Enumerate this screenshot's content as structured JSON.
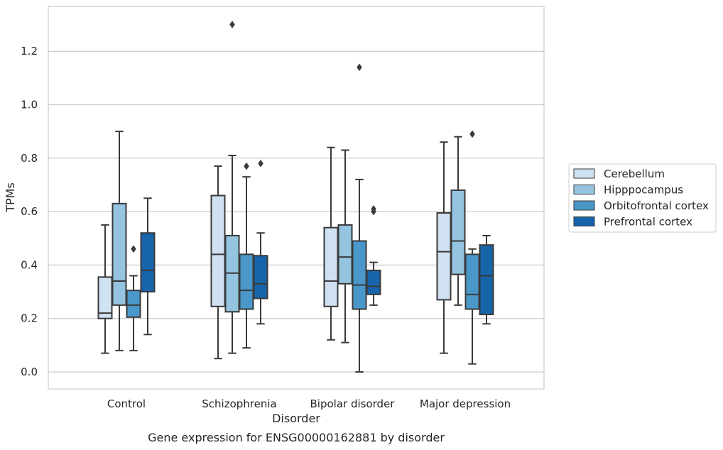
{
  "caption": "Gene expression for ENSG00000162881 by disorder",
  "chart_data": {
    "type": "box",
    "xlabel": "Disorder",
    "ylabel": "TPMs",
    "ylim": [
      -0.065,
      1.37
    ],
    "yticks": [
      "0.0",
      "0.2",
      "0.4",
      "0.6",
      "0.8",
      "1.0",
      "1.2"
    ],
    "grid": "horizontal",
    "legend_position": "right",
    "categories": [
      "Control",
      "Schizophrenia",
      "Bipolar disorder",
      "Major depression"
    ],
    "series": [
      {
        "name": "Cerebellum",
        "color": "#d0e1f2",
        "boxes": [
          {
            "whislo": 0.07,
            "q1": 0.2,
            "med": 0.22,
            "q3": 0.355,
            "whishi": 0.55,
            "fliers": []
          },
          {
            "whislo": 0.05,
            "q1": 0.245,
            "med": 0.44,
            "q3": 0.66,
            "whishi": 0.77,
            "fliers": []
          },
          {
            "whislo": 0.12,
            "q1": 0.245,
            "med": 0.34,
            "q3": 0.54,
            "whishi": 0.84,
            "fliers": []
          },
          {
            "whislo": 0.07,
            "q1": 0.27,
            "med": 0.45,
            "q3": 0.595,
            "whishi": 0.86,
            "fliers": []
          }
        ]
      },
      {
        "name": "Hipppocampus",
        "color": "#94c4df",
        "boxes": [
          {
            "whislo": 0.08,
            "q1": 0.25,
            "med": 0.34,
            "q3": 0.63,
            "whishi": 0.9,
            "fliers": []
          },
          {
            "whislo": 0.07,
            "q1": 0.225,
            "med": 0.37,
            "q3": 0.51,
            "whishi": 0.81,
            "fliers": [
              1.3
            ]
          },
          {
            "whislo": 0.11,
            "q1": 0.33,
            "med": 0.43,
            "q3": 0.55,
            "whishi": 0.83,
            "fliers": []
          },
          {
            "whislo": 0.25,
            "q1": 0.365,
            "med": 0.49,
            "q3": 0.68,
            "whishi": 0.88,
            "fliers": []
          }
        ]
      },
      {
        "name": "Orbitofrontal cortex",
        "color": "#4a98c9",
        "boxes": [
          {
            "whislo": 0.08,
            "q1": 0.205,
            "med": 0.25,
            "q3": 0.305,
            "whishi": 0.36,
            "fliers": [
              0.46
            ]
          },
          {
            "whislo": 0.09,
            "q1": 0.235,
            "med": 0.305,
            "q3": 0.44,
            "whishi": 0.73,
            "fliers": [
              0.77
            ]
          },
          {
            "whislo": 0.0,
            "q1": 0.235,
            "med": 0.325,
            "q3": 0.49,
            "whishi": 0.72,
            "fliers": [
              1.14
            ]
          },
          {
            "whislo": 0.03,
            "q1": 0.235,
            "med": 0.29,
            "q3": 0.44,
            "whishi": 0.46,
            "fliers": [
              0.89
            ]
          }
        ]
      },
      {
        "name": "Prefrontal cortex",
        "color": "#1764ab",
        "boxes": [
          {
            "whislo": 0.14,
            "q1": 0.3,
            "med": 0.38,
            "q3": 0.52,
            "whishi": 0.65,
            "fliers": []
          },
          {
            "whislo": 0.18,
            "q1": 0.275,
            "med": 0.33,
            "q3": 0.435,
            "whishi": 0.52,
            "fliers": [
              0.78
            ]
          },
          {
            "whislo": 0.25,
            "q1": 0.29,
            "med": 0.32,
            "q3": 0.38,
            "whishi": 0.41,
            "fliers": [
              0.6,
              0.61
            ]
          },
          {
            "whislo": 0.18,
            "q1": 0.215,
            "med": 0.36,
            "q3": 0.475,
            "whishi": 0.51,
            "fliers": []
          }
        ]
      }
    ]
  }
}
